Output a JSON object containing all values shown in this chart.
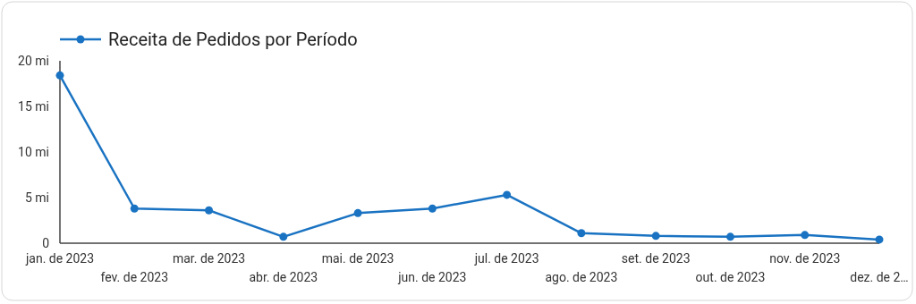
{
  "chart_data": {
    "type": "line",
    "categories": [
      "jan. de 2023",
      "fev. de 2023",
      "mar. de 2023",
      "abr. de 2023",
      "mai. de 2023",
      "jun. de 2023",
      "jul. de 2023",
      "ago. de 2023",
      "set. de 2023",
      "out. de 2023",
      "nov. de 2023",
      "dez. de 2…"
    ],
    "series": [
      {
        "name": "Receita de Pedidos por Período",
        "color": "#1a73c2",
        "values": [
          18.4,
          3.8,
          3.6,
          0.7,
          3.3,
          3.8,
          5.3,
          1.1,
          0.8,
          0.7,
          0.9,
          0.4
        ]
      }
    ],
    "ylim": [
      0,
      20
    ],
    "yticks": [
      {
        "value": 0,
        "label": "0"
      },
      {
        "value": 5,
        "label": "5 mi"
      },
      {
        "value": 10,
        "label": "10 mi"
      },
      {
        "value": 15,
        "label": "15 mi"
      },
      {
        "value": 20,
        "label": "20 mi"
      }
    ],
    "legend": "top left",
    "marker": "circle",
    "line_style": "solid",
    "grid": false
  }
}
